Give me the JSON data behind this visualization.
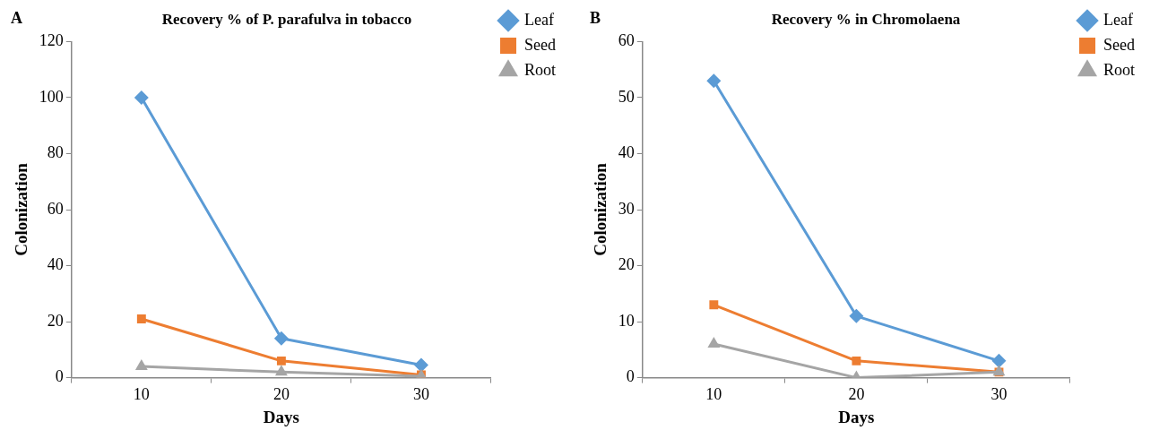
{
  "chart_data": [
    {
      "type": "line",
      "title": "Recovery % of P. parafulva in tobacco",
      "annotations": [
        "A"
      ],
      "xlabel": "Days",
      "ylabel": "Colonization",
      "categories": [
        "10",
        "20",
        "30"
      ],
      "ylim": [
        0,
        120
      ],
      "yticks": [
        0,
        20,
        40,
        60,
        80,
        100,
        120
      ],
      "legend": "top right",
      "series": [
        {
          "name": "Leaf",
          "color": "#5b9bd5",
          "marker": "diamond",
          "values": [
            100,
            14,
            4.5
          ]
        },
        {
          "name": "Seed",
          "color": "#ed7d31",
          "marker": "square",
          "values": [
            21,
            6,
            1
          ]
        },
        {
          "name": "Root",
          "color": "#a5a5a5",
          "marker": "triangle",
          "values": [
            4,
            2,
            0.5
          ]
        }
      ]
    },
    {
      "type": "line",
      "title": "Recovery % in Chromolaena",
      "annotations": [
        "B"
      ],
      "xlabel": "Days",
      "ylabel": "Colonization",
      "categories": [
        "10",
        "20",
        "30"
      ],
      "ylim": [
        0,
        60
      ],
      "yticks": [
        0,
        10,
        20,
        30,
        40,
        50,
        60
      ],
      "legend": "top right",
      "series": [
        {
          "name": "Leaf",
          "color": "#5b9bd5",
          "marker": "diamond",
          "values": [
            53,
            11,
            3
          ]
        },
        {
          "name": "Seed",
          "color": "#ed7d31",
          "marker": "square",
          "values": [
            13,
            3,
            1
          ]
        },
        {
          "name": "Root",
          "color": "#a5a5a5",
          "marker": "triangle",
          "values": [
            6,
            0,
            1
          ]
        }
      ]
    }
  ]
}
